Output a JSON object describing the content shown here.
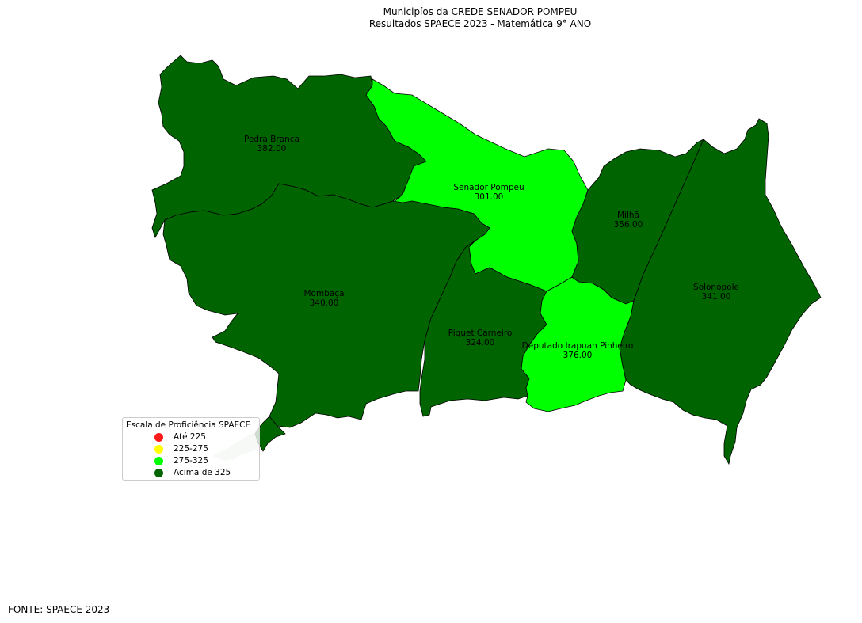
{
  "title": {
    "line1": "Municipíos da CREDE SENADOR POMPEU",
    "line2": "Resultados SPAECE 2023 - Matemática 9° ANO"
  },
  "colors": {
    "ate_225": "#ff1a1a",
    "faixa_225_275": "#ffff00",
    "faixa_275_325": "#00ff00",
    "acima_325": "#006400",
    "neighbor": "#cfe0cf"
  },
  "municipios": [
    {
      "name": "Pedra Branca",
      "value": "382.00",
      "class": "acima_325"
    },
    {
      "name": "Senador Pompeu",
      "value": "301.00",
      "class": "faixa_275_325"
    },
    {
      "name": "Milhã",
      "value": "356.00",
      "class": "acima_325"
    },
    {
      "name": "Mombaça",
      "value": "340.00",
      "class": "acima_325"
    },
    {
      "name": "Solonópole",
      "value": "341.00",
      "class": "acima_325"
    },
    {
      "name": "Piquet Carneiro",
      "value": "324.00",
      "class": "faixa_275_325"
    },
    {
      "name": "Deputado Irapuan Pinheiro",
      "value": "376.00",
      "class": "acima_325"
    }
  ],
  "legend": {
    "title": "Escala de Proficiência SPAECE",
    "items": [
      {
        "label": "Até 225",
        "color": "#ff1a1a"
      },
      {
        "label": "225-275",
        "color": "#ffff00"
      },
      {
        "label": "275-325",
        "color": "#00ff00"
      },
      {
        "label": "Acima de 325",
        "color": "#006400"
      }
    ]
  },
  "source": "FONTE: SPAECE 2023"
}
